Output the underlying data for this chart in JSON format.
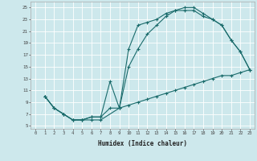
{
  "bg_color": "#cde8ec",
  "grid_color": "#ffffff",
  "line_color": "#1a6b6b",
  "xlabel": "Humidex (Indice chaleur)",
  "xlim": [
    -0.5,
    23.5
  ],
  "ylim": [
    4.5,
    26.0
  ],
  "xticks": [
    0,
    1,
    2,
    3,
    4,
    5,
    6,
    7,
    8,
    9,
    10,
    11,
    12,
    13,
    14,
    15,
    16,
    17,
    18,
    19,
    20,
    21,
    22,
    23
  ],
  "yticks": [
    5,
    7,
    9,
    11,
    13,
    15,
    17,
    19,
    21,
    23,
    25
  ],
  "line1_x": [
    1,
    2,
    3,
    4,
    5,
    6,
    7,
    8,
    9,
    10,
    11,
    12,
    13,
    14,
    15,
    16,
    17,
    18,
    19,
    20,
    21,
    22,
    23
  ],
  "line1_y": [
    10,
    8,
    7,
    6,
    6,
    6.5,
    6.5,
    12.5,
    8,
    18,
    22,
    22.5,
    23,
    24,
    24.5,
    25,
    25,
    24,
    23,
    22,
    19.5,
    17.5,
    14.5
  ],
  "line2_x": [
    1,
    2,
    3,
    4,
    5,
    6,
    7,
    8,
    9,
    10,
    11,
    12,
    13,
    14,
    15,
    16,
    17,
    18,
    19,
    20,
    21,
    22,
    23
  ],
  "line2_y": [
    10,
    8,
    7,
    6,
    6,
    6.5,
    6.5,
    8,
    8,
    15,
    18,
    20.5,
    22,
    23.5,
    24.5,
    24.5,
    24.5,
    23.5,
    23,
    22,
    19.5,
    17.5,
    14.5
  ],
  "line3_x": [
    1,
    2,
    3,
    4,
    5,
    6,
    7,
    9,
    10,
    11,
    12,
    13,
    14,
    15,
    16,
    17,
    18,
    19,
    20,
    21,
    22,
    23
  ],
  "line3_y": [
    10,
    8,
    7,
    6,
    6,
    6,
    6,
    8,
    8.5,
    9,
    9.5,
    10,
    10.5,
    11,
    11.5,
    12,
    12.5,
    13,
    13.5,
    13.5,
    14,
    14.5
  ]
}
